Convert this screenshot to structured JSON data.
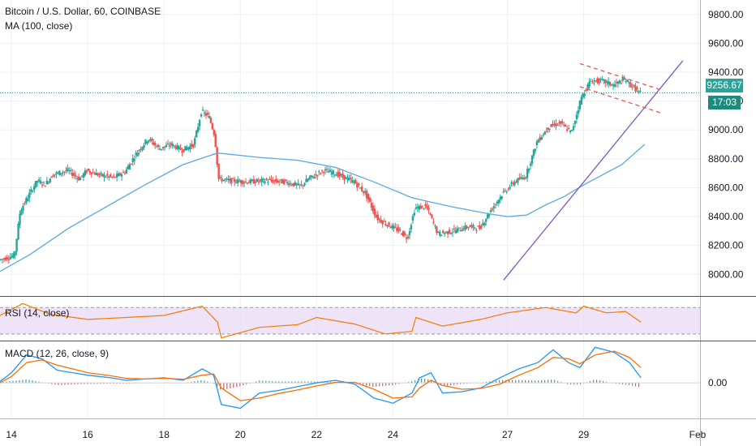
{
  "header": {
    "title": "Bitcoin / U.S. Dollar, 60, COINBASE",
    "ma_label": "MA (100, close)"
  },
  "last_price_label": "9256.67",
  "countdown_label": "17:03",
  "colors": {
    "up": "#26a69a",
    "down": "#ef5350",
    "ma": "#5aa8e0",
    "trendline": "#7e57c2",
    "channel": "#ef5350",
    "rsi_line": "#f57c00",
    "rsi_band": "#eadcf5",
    "macd_line": "#2196f3",
    "signal_line": "#ff6d00",
    "price_tag": "#26a69a",
    "grid": "#eef0f3"
  },
  "chart_data": [
    {
      "type": "candlestick",
      "title": "Bitcoin / U.S. Dollar, 60, COINBASE",
      "ylim": [
        7850,
        9900
      ],
      "y_ticks": [
        "9800.00",
        "9600.00",
        "9400.00",
        "9200.00",
        "9000.00",
        "8800.00",
        "8600.00",
        "8400.00",
        "8200.00",
        "8000.00"
      ],
      "y_tick_values": [
        9800,
        9600,
        9400,
        9200,
        9000,
        8800,
        8600,
        8400,
        8200,
        8000
      ],
      "x_ticks": [
        "14",
        "16",
        "18",
        "20",
        "22",
        "24",
        "27",
        "29",
        "Feb"
      ],
      "x_tick_days": [
        14,
        16,
        18,
        20,
        22,
        24,
        27,
        29,
        32
      ],
      "xlim_days": [
        13.7,
        32.05
      ],
      "price_path": [
        [
          13.7,
          8100
        ],
        [
          14.1,
          8130
        ],
        [
          14.25,
          8440
        ],
        [
          14.5,
          8560
        ],
        [
          14.7,
          8650
        ],
        [
          14.9,
          8620
        ],
        [
          15.1,
          8690
        ],
        [
          15.5,
          8720
        ],
        [
          15.8,
          8660
        ],
        [
          16.0,
          8720
        ],
        [
          16.3,
          8690
        ],
        [
          16.7,
          8670
        ],
        [
          17.0,
          8710
        ],
        [
          17.3,
          8840
        ],
        [
          17.6,
          8940
        ],
        [
          17.9,
          8870
        ],
        [
          18.2,
          8900
        ],
        [
          18.5,
          8860
        ],
        [
          18.8,
          8900
        ],
        [
          19.0,
          9130
        ],
        [
          19.2,
          9090
        ],
        [
          19.35,
          8960
        ],
        [
          19.45,
          8660
        ],
        [
          19.7,
          8650
        ],
        [
          20.2,
          8640
        ],
        [
          20.7,
          8650
        ],
        [
          21.2,
          8640
        ],
        [
          21.6,
          8610
        ],
        [
          21.8,
          8660
        ],
        [
          22.2,
          8720
        ],
        [
          22.5,
          8700
        ],
        [
          23.0,
          8640
        ],
        [
          23.3,
          8560
        ],
        [
          23.6,
          8390
        ],
        [
          23.9,
          8340
        ],
        [
          24.2,
          8300
        ],
        [
          24.4,
          8250
        ],
        [
          24.6,
          8460
        ],
        [
          24.9,
          8470
        ],
        [
          25.2,
          8280
        ],
        [
          25.6,
          8300
        ],
        [
          26.0,
          8330
        ],
        [
          26.3,
          8320
        ],
        [
          26.6,
          8450
        ],
        [
          26.9,
          8560
        ],
        [
          27.2,
          8640
        ],
        [
          27.5,
          8680
        ],
        [
          27.8,
          8920
        ],
        [
          28.1,
          9020
        ],
        [
          28.4,
          9050
        ],
        [
          28.7,
          8980
        ],
        [
          28.95,
          9220
        ],
        [
          29.2,
          9340
        ],
        [
          29.5,
          9340
        ],
        [
          29.8,
          9310
        ],
        [
          30.1,
          9350
        ],
        [
          30.3,
          9300
        ],
        [
          30.5,
          9256
        ]
      ],
      "ma_100": [
        [
          13.7,
          8020
        ],
        [
          14.5,
          8140
        ],
        [
          15.5,
          8320
        ],
        [
          16.5,
          8470
        ],
        [
          17.5,
          8620
        ],
        [
          18.5,
          8760
        ],
        [
          19.4,
          8840
        ],
        [
          20.5,
          8810
        ],
        [
          21.5,
          8790
        ],
        [
          22.5,
          8740
        ],
        [
          23.5,
          8640
        ],
        [
          24.5,
          8530
        ],
        [
          25.5,
          8470
        ],
        [
          26.5,
          8420
        ],
        [
          27.0,
          8400
        ],
        [
          27.5,
          8410
        ],
        [
          28.0,
          8480
        ],
        [
          28.5,
          8540
        ],
        [
          29.0,
          8620
        ],
        [
          29.5,
          8690
        ],
        [
          30.0,
          8760
        ],
        [
          30.6,
          8900
        ]
      ],
      "ma_label": "MA (100, close)",
      "last_price": 9256.67,
      "last_price_label": "9256.67",
      "annotations": [
        {
          "type": "trendline",
          "from": [
            26.9,
            7960
          ],
          "to": [
            31.6,
            9480
          ]
        },
        {
          "type": "channel_upper",
          "from": [
            28.9,
            9460
          ],
          "to": [
            31.0,
            9280
          ]
        },
        {
          "type": "channel_lower",
          "from": [
            28.9,
            9300
          ],
          "to": [
            31.0,
            9120
          ]
        }
      ]
    },
    {
      "type": "line",
      "title": "RSI (14, close)",
      "ylim": [
        20,
        85
      ],
      "band": [
        30,
        70
      ],
      "values_path": [
        [
          13.7,
          58
        ],
        [
          14.3,
          76
        ],
        [
          15.0,
          60
        ],
        [
          16.0,
          52
        ],
        [
          17.0,
          55
        ],
        [
          18.0,
          58
        ],
        [
          19.0,
          72
        ],
        [
          19.4,
          48
        ],
        [
          19.5,
          24
        ],
        [
          20.5,
          40
        ],
        [
          21.5,
          44
        ],
        [
          22.0,
          55
        ],
        [
          23.0,
          45
        ],
        [
          23.8,
          30
        ],
        [
          24.5,
          34
        ],
        [
          24.6,
          55
        ],
        [
          25.3,
          42
        ],
        [
          26.3,
          52
        ],
        [
          27.0,
          62
        ],
        [
          28.0,
          70
        ],
        [
          28.8,
          62
        ],
        [
          29.0,
          72
        ],
        [
          29.6,
          62
        ],
        [
          30.1,
          64
        ],
        [
          30.5,
          48
        ]
      ]
    },
    {
      "type": "line",
      "title": "MACD (12, 26, close, 9)",
      "ylim": [
        -140,
        160
      ],
      "y_ticks": [
        "0.00"
      ],
      "y_tick_values": [
        0
      ],
      "macd_path": [
        [
          13.7,
          5
        ],
        [
          14.0,
          40
        ],
        [
          14.4,
          110
        ],
        [
          14.8,
          95
        ],
        [
          15.2,
          50
        ],
        [
          15.6,
          40
        ],
        [
          16.0,
          30
        ],
        [
          16.6,
          20
        ],
        [
          17.0,
          10
        ],
        [
          17.5,
          15
        ],
        [
          18.0,
          20
        ],
        [
          18.5,
          10
        ],
        [
          19.0,
          55
        ],
        [
          19.3,
          30
        ],
        [
          19.5,
          -85
        ],
        [
          20.0,
          -100
        ],
        [
          20.5,
          -40
        ],
        [
          21.0,
          -30
        ],
        [
          21.5,
          -15
        ],
        [
          22.0,
          0
        ],
        [
          22.5,
          10
        ],
        [
          23.0,
          -5
        ],
        [
          23.5,
          -60
        ],
        [
          24.0,
          -80
        ],
        [
          24.5,
          -40
        ],
        [
          24.7,
          20
        ],
        [
          25.0,
          40
        ],
        [
          25.3,
          -40
        ],
        [
          25.8,
          -35
        ],
        [
          26.3,
          -20
        ],
        [
          26.8,
          20
        ],
        [
          27.3,
          55
        ],
        [
          27.8,
          80
        ],
        [
          28.2,
          130
        ],
        [
          28.6,
          80
        ],
        [
          28.9,
          60
        ],
        [
          29.3,
          140
        ],
        [
          29.8,
          120
        ],
        [
          30.2,
          80
        ],
        [
          30.5,
          20
        ]
      ],
      "signal_path": [
        [
          13.7,
          0
        ],
        [
          14.0,
          25
        ],
        [
          14.4,
          80
        ],
        [
          14.8,
          90
        ],
        [
          15.2,
          70
        ],
        [
          15.6,
          55
        ],
        [
          16.0,
          40
        ],
        [
          16.6,
          28
        ],
        [
          17.0,
          18
        ],
        [
          17.5,
          15
        ],
        [
          18.0,
          18
        ],
        [
          18.5,
          14
        ],
        [
          19.0,
          30
        ],
        [
          19.3,
          35
        ],
        [
          19.5,
          -20
        ],
        [
          20.0,
          -70
        ],
        [
          20.5,
          -60
        ],
        [
          21.0,
          -42
        ],
        [
          21.5,
          -28
        ],
        [
          22.0,
          -12
        ],
        [
          22.5,
          2
        ],
        [
          23.0,
          2
        ],
        [
          23.5,
          -25
        ],
        [
          24.0,
          -60
        ],
        [
          24.5,
          -55
        ],
        [
          24.7,
          -20
        ],
        [
          25.0,
          10
        ],
        [
          25.3,
          -10
        ],
        [
          25.8,
          -25
        ],
        [
          26.3,
          -22
        ],
        [
          26.8,
          -5
        ],
        [
          27.3,
          30
        ],
        [
          27.8,
          60
        ],
        [
          28.2,
          100
        ],
        [
          28.6,
          95
        ],
        [
          28.9,
          75
        ],
        [
          29.3,
          110
        ],
        [
          29.8,
          125
        ],
        [
          30.2,
          100
        ],
        [
          30.5,
          60
        ]
      ]
    }
  ]
}
